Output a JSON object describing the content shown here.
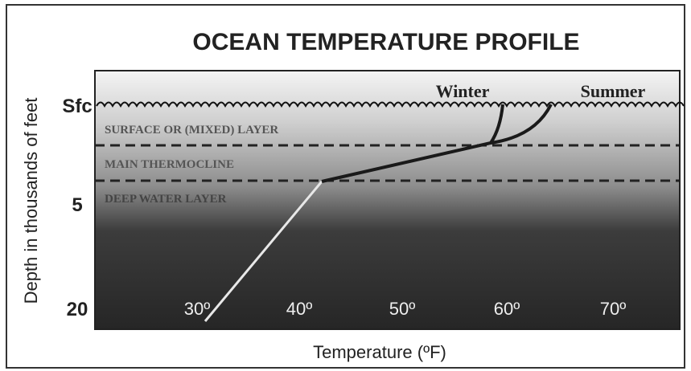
{
  "header": {
    "title": "OCEAN TEMPERATURE PROFILE"
  },
  "y_axis": {
    "title": "Depth in thousands of feet",
    "labels": [
      "Sfc",
      "5",
      "20"
    ]
  },
  "x_axis": {
    "title": "Temperature (ºF)",
    "labels": [
      "30º",
      "40º",
      "50º",
      "60º",
      "70º"
    ]
  },
  "layers": [
    "SURFACE  OR (MIXED) LAYER",
    "MAIN THERMOCLINE",
    "DEEP WATER LAYER"
  ],
  "profiles": [
    "Winter",
    "Summer"
  ]
}
